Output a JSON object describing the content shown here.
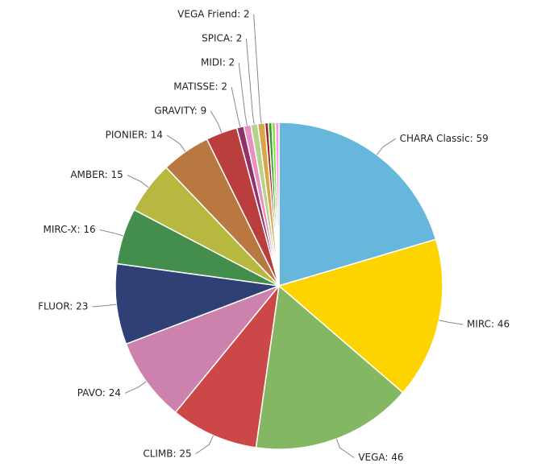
{
  "chart_data": {
    "type": "pie",
    "categories": [
      "CHARA Classic",
      "MIRC",
      "VEGA",
      "CLIMB",
      "PAVO",
      "FLUOR",
      "MIRC-X",
      "AMBER",
      "PIONIER",
      "GRAVITY",
      "MATISSE",
      "MIDI",
      "SPICA",
      "VEGA Friend",
      null,
      null,
      null,
      null
    ],
    "values": [
      59,
      46,
      46,
      25,
      24,
      23,
      16,
      15,
      14,
      9,
      2,
      2,
      2,
      2,
      1,
      1,
      1,
      1
    ],
    "value_labels": [
      "CHARA Classic: 59",
      "MIRC: 46",
      "VEGA: 46",
      "CLIMB: 25",
      "PAVO: 24",
      "FLUOR: 23",
      "MIRC-X: 16",
      "AMBER: 15",
      "PIONIER: 14",
      "GRAVITY: 9",
      "MATISSE: 2",
      "MIDI: 2",
      "SPICA: 2",
      "VEGA Friend: 2",
      null,
      null,
      null,
      null
    ],
    "colors": [
      "#67b7dc",
      "#fdd400",
      "#84b761",
      "#cc4748",
      "#cd82ad",
      "#2f4074",
      "#448e4d",
      "#b7b83f",
      "#b9783f",
      "#b93e3d",
      "#913167",
      "#e88ec0",
      "#b4d28c",
      "#d9a54a",
      "#a02424",
      "#2da02c",
      "#8fdd3c",
      "#ff8ff0"
    ]
  }
}
